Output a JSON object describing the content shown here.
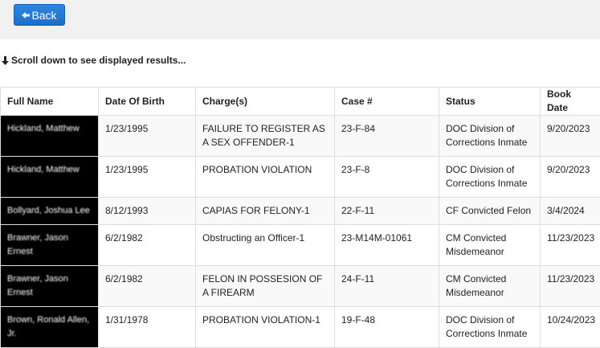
{
  "toolbar": {
    "back_label": "Back",
    "back_icon": "arrow-left-icon"
  },
  "notice": {
    "text": "Scroll down to see displayed results...",
    "icon": "arrow-down-icon"
  },
  "table": {
    "headers": [
      "Full Name",
      "Date Of Birth",
      "Charge(s)",
      "Case #",
      "Status",
      "Book Date"
    ],
    "rows": [
      {
        "name": "Hickland, Matthew",
        "dob": "1/23/1995",
        "charge": "FAILURE TO REGISTER AS A SEX OFFENDER-1",
        "case": "23-F-84",
        "status": "DOC Division of Corrections Inmate",
        "book_date": "9/20/2023"
      },
      {
        "name": "Hickland, Matthew",
        "dob": "1/23/1995",
        "charge": "PROBATION VIOLATION",
        "case": "23-F-8",
        "status": "DOC Division of Corrections Inmate",
        "book_date": "9/20/2023"
      },
      {
        "name": "Bollyard, Joshua Lee",
        "dob": "8/12/1993",
        "charge": "CAPIAS FOR FELONY-1",
        "case": "22-F-11",
        "status": "CF Convicted Felon",
        "book_date": "3/4/2024"
      },
      {
        "name": "Brawner, Jason Ernest",
        "dob": "6/2/1982",
        "charge": "Obstructing an Officer-1",
        "case": "23-M14M-01061",
        "status": "CM Convicted Misdemeanor",
        "book_date": "11/23/2023"
      },
      {
        "name": "Brawner, Jason Ernest",
        "dob": "6/2/1982",
        "charge": "FELON IN POSSESION OF A FIREARM",
        "case": "24-F-11",
        "status": "CM Convicted Misdemeanor",
        "book_date": "11/23/2023"
      },
      {
        "name": "Brown, Ronald Allen, Jr.",
        "dob": "1/31/1978",
        "charge": "PROBATION VIOLATION-1",
        "case": "19-F-48",
        "status": "DOC Division of Corrections Inmate",
        "book_date": "10/24/2023"
      }
    ]
  },
  "colors": {
    "accent": "#1c6fc7",
    "topbar_bg": "#f1f1f1",
    "redacted_bg": "#000000",
    "border": "#dddddd"
  }
}
